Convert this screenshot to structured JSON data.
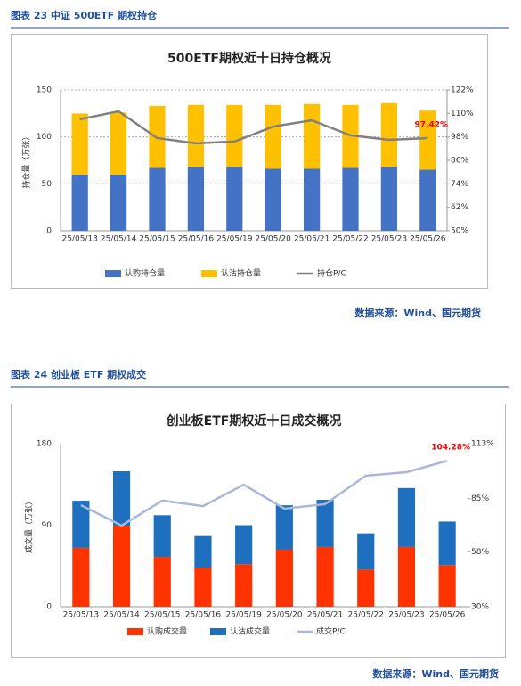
{
  "figures": [
    {
      "caption": "图表 23  中证 500ETF 期权持仓",
      "source": "数据来源：Wind、国元期货"
    },
    {
      "caption": "图表 24  创业板 ETF 期权成交",
      "source": "数据来源：Wind、国元期货"
    }
  ],
  "chart_data": [
    {
      "type": "bar",
      "stacked": true,
      "grid": true,
      "title": "500ETF期权近十日持仓概况",
      "y_label": "持仓量（万张）",
      "categories": [
        "25/05/13",
        "25/05/14",
        "25/05/15",
        "25/05/16",
        "25/05/19",
        "25/05/20",
        "25/05/21",
        "25/05/22",
        "25/05/23",
        "25/05/26"
      ],
      "series": [
        {
          "name": "认购持仓量",
          "color": "#4472c4",
          "values": [
            60,
            60,
            67,
            68,
            68,
            66,
            66,
            67,
            68,
            65
          ]
        },
        {
          "name": "认沽持仓量",
          "color": "#ffc000",
          "values": [
            65,
            66,
            66,
            66,
            66,
            68,
            69,
            67,
            68,
            63
          ]
        },
        {
          "name": "持仓P/C",
          "color": "#808080",
          "type": "line",
          "axis": "y2",
          "values": [
            107.0,
            111.1,
            97.4,
            94.7,
            95.6,
            103.3,
            106.5,
            98.8,
            96.5,
            97.42
          ],
          "value_labels": [
            null,
            null,
            null,
            null,
            null,
            null,
            null,
            null,
            null,
            "97.42%"
          ]
        }
      ],
      "ylim": [
        0,
        150
      ],
      "yticks": [
        0,
        50,
        100,
        150
      ],
      "y2lim": [
        50,
        122
      ],
      "y2ticks": [
        {
          "value": 50,
          "label": "50%"
        },
        {
          "value": 62,
          "label": "62%"
        },
        {
          "value": 74,
          "label": "74%"
        },
        {
          "value": 86,
          "label": "86%"
        },
        {
          "value": 98,
          "label": "98%"
        },
        {
          "value": 110,
          "label": "110%"
        },
        {
          "value": 122,
          "label": "122%"
        }
      ]
    },
    {
      "type": "bar",
      "stacked": true,
      "grid": false,
      "title": "创业板ETF期权近十日成交概况",
      "y_label": "成交量（万张）",
      "categories": [
        "25/05/13",
        "25/05/14",
        "25/05/15",
        "25/05/16",
        "25/05/19",
        "25/05/20",
        "25/05/21",
        "25/05/22",
        "25/05/23",
        "25/05/26"
      ],
      "series": [
        {
          "name": "认购成交量",
          "color": "#ff3300",
          "values": [
            65,
            89.5,
            55,
            43,
            47,
            63,
            66,
            41,
            66,
            46
          ]
        },
        {
          "name": "认沽成交量",
          "color": "#1f6fbf",
          "values": [
            52,
            60,
            46,
            35,
            43,
            49,
            52,
            40,
            65,
            48
          ]
        },
        {
          "name": "成交P/C",
          "color": "#a9b8d8",
          "type": "line",
          "axis": "y2",
          "values": [
            81.7,
            71.3,
            84.0,
            81.2,
            92.1,
            79.9,
            82.2,
            96.7,
            98.5,
            104.28
          ],
          "value_labels": [
            null,
            null,
            null,
            null,
            null,
            null,
            null,
            null,
            null,
            "104.28%"
          ]
        }
      ],
      "ylim": [
        0,
        180
      ],
      "yticks": [
        0,
        90,
        180
      ],
      "y2lim": [
        30,
        113
      ],
      "y2ticks": [
        {
          "value": 30,
          "label": "30%"
        },
        {
          "value": 58,
          "label": "58%"
        },
        {
          "value": 85,
          "label": "85%"
        },
        {
          "value": 113,
          "label": "113%"
        }
      ]
    }
  ]
}
